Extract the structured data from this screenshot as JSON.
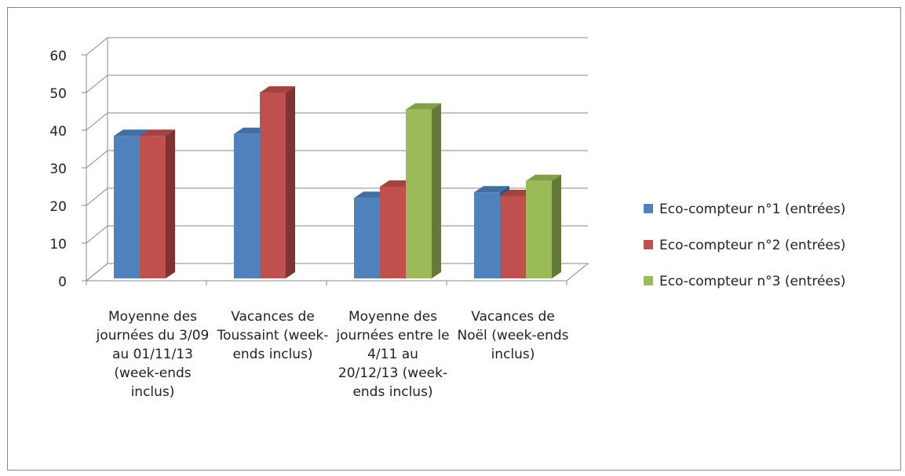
{
  "chart_data": {
    "type": "bar3d",
    "categories": [
      "Moyenne des journées du 3/09 au 01/11/13 (week-ends inclus)",
      "Vacances de Toussaint (week-ends inclus)",
      "Moyenne des journées entre le 4/11 au 20/12/13 (week-ends inclus)",
      "Vacances de Noël (week-ends inclus)"
    ],
    "series": [
      {
        "name": "Eco-compteur n°1 (entrées)",
        "color": "#4f81bd",
        "values": [
          38.5,
          39,
          22,
          23.5
        ]
      },
      {
        "name": "Eco-compteur n°2 (entrées)",
        "color": "#c0504d",
        "values": [
          38.5,
          50,
          25,
          22.5
        ]
      },
      {
        "name": "Eco-compteur n°3 (entrées)",
        "color": "#9bbb59",
        "values": [
          null,
          null,
          45.5,
          26.5
        ]
      }
    ],
    "ylim": [
      0,
      60
    ],
    "yticks": [
      0,
      10,
      20,
      30,
      40,
      50,
      60
    ],
    "grid": true,
    "legend": "right"
  }
}
